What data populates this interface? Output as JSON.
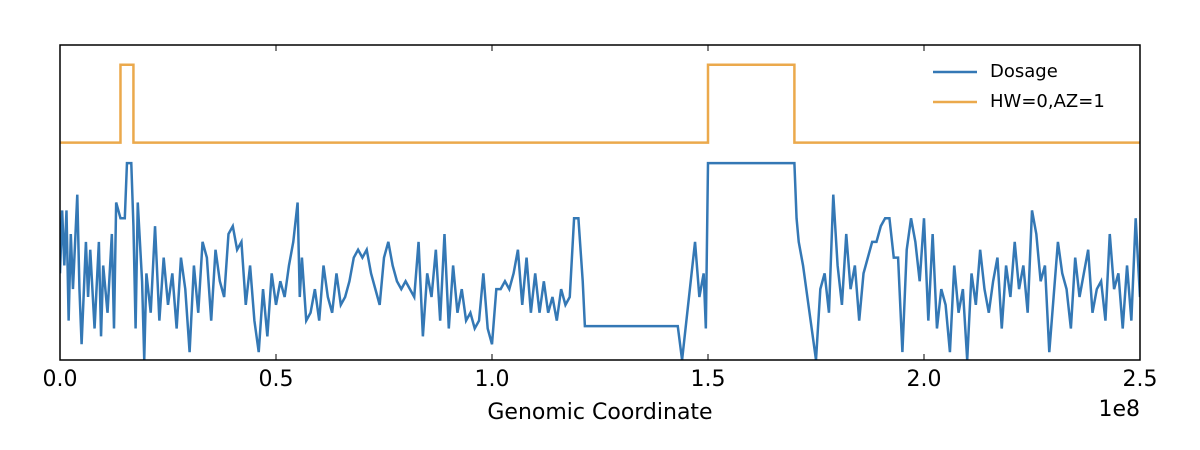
{
  "chart_data": {
    "type": "line",
    "x_label": "Genomic Coordinate",
    "x_offset_label": "1e8",
    "xlim": [
      0,
      250000000.0
    ],
    "xticks": [
      {
        "value": 0,
        "label": "0.0"
      },
      {
        "value": 50000000.0,
        "label": "0.5"
      },
      {
        "value": 100000000.0,
        "label": "1.0"
      },
      {
        "value": 150000000.0,
        "label": "1.5"
      },
      {
        "value": 200000000.0,
        "label": "2.0"
      },
      {
        "value": 250000000.0,
        "label": "2.5"
      }
    ],
    "ylim": [
      0,
      4
    ],
    "legend": "upper right",
    "series": [
      {
        "name": "Dosage",
        "color": "#3478b5",
        "x": [
          0.0,
          500000.0,
          1000000.0,
          1500000.0,
          2000000.0,
          2500000.0,
          3000000.0,
          4000000.0,
          4500000.0,
          5000000.0,
          6000000.0,
          6500000.0,
          7000000.0,
          8000000.0,
          9000000.0,
          9500000.0,
          10000000.0,
          11000000.0,
          12000000.0,
          12500000.0,
          13000000.0,
          14000000.0,
          15000000.0,
          15500000.0,
          16500000.0,
          17000000.0,
          17500000.0,
          18000000.0,
          19000000.0,
          19500000.0,
          20000000.0,
          21000000.0,
          22000000.0,
          23000000.0,
          24000000.0,
          25000000.0,
          26000000.0,
          27000000.0,
          28000000.0,
          29000000.0,
          30000000.0,
          31000000.0,
          32000000.0,
          33000000.0,
          34000000.0,
          35000000.0,
          36000000.0,
          37000000.0,
          38000000.0,
          39000000.0,
          40000000.0,
          41000000.0,
          42000000.0,
          43000000.0,
          44000000.0,
          45000000.0,
          46000000.0,
          47000000.0,
          48000000.0,
          49000000.0,
          50000000.0,
          51000000.0,
          52000000.0,
          53000000.0,
          54000000.0,
          55000000.0,
          55500000.0,
          56000000.0,
          57000000.0,
          58000000.0,
          59000000.0,
          60000000.0,
          61000000.0,
          62000000.0,
          63000000.0,
          64000000.0,
          65000000.0,
          66000000.0,
          67000000.0,
          68000000.0,
          69000000.0,
          70000000.0,
          71000000.0,
          72000000.0,
          73000000.0,
          74000000.0,
          75000000.0,
          76000000.0,
          77000000.0,
          78000000.0,
          79000000.0,
          80000000.0,
          81000000.0,
          82000000.0,
          83000000.0,
          84000000.0,
          85000000.0,
          86000000.0,
          87000000.0,
          88000000.0,
          89000000.0,
          90000000.0,
          91000000.0,
          92000000.0,
          93000000.0,
          94000000.0,
          95000000.0,
          96000000.0,
          97000000.0,
          98000000.0,
          99000000.0,
          100000000.0,
          101000000.0,
          102000000.0,
          103000000.0,
          104000000.0,
          105000000.0,
          106000000.0,
          107000000.0,
          108000000.0,
          109000000.0,
          110000000.0,
          111000000.0,
          112000000.0,
          113000000.0,
          114000000.0,
          115000000.0,
          116000000.0,
          117000000.0,
          118000000.0,
          119000000.0,
          120000000.0,
          121000000.0,
          121500000.0,
          143000000.0,
          144000000.0,
          145000000.0,
          146000000.0,
          147000000.0,
          148000000.0,
          149000000.0,
          149500000.0,
          150000000.0,
          170000000.0,
          170500000.0,
          171000000.0,
          172000000.0,
          173000000.0,
          174000000.0,
          175000000.0,
          176000000.0,
          177000000.0,
          178000000.0,
          179000000.0,
          180000000.0,
          181000000.0,
          182000000.0,
          183000000.0,
          184000000.0,
          185000000.0,
          186000000.0,
          187000000.0,
          188000000.0,
          189000000.0,
          190000000.0,
          191000000.0,
          192000000.0,
          193000000.0,
          194000000.0,
          195000000.0,
          196000000.0,
          197000000.0,
          198000000.0,
          199000000.0,
          200000000.0,
          201000000.0,
          202000000.0,
          203000000.0,
          204000000.0,
          205000000.0,
          206000000.0,
          207000000.0,
          208000000.0,
          209000000.0,
          210000000.0,
          211000000.0,
          212000000.0,
          213000000.0,
          214000000.0,
          215000000.0,
          216000000.0,
          217000000.0,
          218000000.0,
          219000000.0,
          220000000.0,
          221000000.0,
          222000000.0,
          223000000.0,
          224000000.0,
          225000000.0,
          226000000.0,
          227000000.0,
          228000000.0,
          229000000.0,
          230000000.0,
          231000000.0,
          232000000.0,
          233000000.0,
          234000000.0,
          235000000.0,
          236000000.0,
          237000000.0,
          238000000.0,
          239000000.0,
          240000000.0,
          241000000.0,
          242000000.0,
          243000000.0,
          244000000.0,
          245000000.0,
          246000000.0,
          247000000.0,
          248000000.0,
          249000000.0,
          250000000.0
        ],
        "values": [
          1.1,
          1.9,
          1.2,
          1.9,
          0.5,
          1.6,
          0.9,
          2.1,
          0.9,
          0.2,
          1.5,
          0.8,
          1.4,
          0.4,
          1.5,
          0.3,
          1.2,
          0.6,
          1.6,
          0.4,
          2.0,
          1.8,
          1.8,
          2.5,
          2.5,
          1.7,
          0.4,
          2.0,
          1.0,
          0.0,
          1.1,
          0.6,
          1.7,
          0.5,
          1.3,
          0.7,
          1.1,
          0.4,
          1.3,
          0.9,
          0.1,
          1.2,
          0.6,
          1.5,
          1.3,
          0.5,
          1.4,
          1.0,
          0.8,
          1.6,
          1.7,
          1.4,
          1.5,
          0.7,
          1.2,
          0.5,
          0.1,
          0.9,
          0.3,
          1.1,
          0.7,
          1.0,
          0.8,
          1.2,
          1.5,
          2.0,
          0.8,
          1.3,
          0.5,
          0.6,
          0.9,
          0.5,
          1.2,
          0.8,
          0.6,
          1.1,
          0.7,
          0.8,
          1.0,
          1.3,
          1.4,
          1.3,
          1.4,
          1.1,
          0.9,
          0.7,
          1.3,
          1.5,
          1.2,
          1.0,
          0.9,
          1.0,
          0.9,
          0.8,
          1.5,
          0.3,
          1.1,
          0.8,
          1.4,
          0.5,
          1.6,
          0.4,
          1.2,
          0.6,
          0.9,
          0.5,
          0.6,
          0.4,
          0.5,
          1.1,
          0.4,
          0.2,
          0.9,
          0.9,
          1.0,
          0.9,
          1.1,
          1.4,
          0.7,
          1.3,
          0.6,
          1.1,
          0.6,
          1.0,
          0.6,
          0.8,
          0.5,
          0.9,
          0.7,
          0.8,
          1.8,
          1.8,
          1.0,
          0.43,
          0.43,
          0.0,
          0.5,
          1.0,
          1.5,
          0.8,
          1.1,
          0.4,
          2.5,
          2.5,
          1.8,
          1.5,
          1.2,
          0.8,
          0.4,
          0.0,
          0.9,
          1.1,
          0.6,
          2.1,
          1.2,
          0.7,
          1.6,
          0.9,
          1.2,
          0.5,
          1.1,
          1.3,
          1.5,
          1.5,
          1.7,
          1.8,
          1.8,
          1.3,
          1.3,
          0.1,
          1.4,
          1.8,
          1.5,
          1.0,
          1.8,
          0.5,
          1.6,
          0.4,
          0.9,
          0.7,
          0.1,
          1.2,
          0.6,
          0.9,
          0.0,
          1.1,
          0.7,
          1.4,
          0.9,
          0.6,
          1.0,
          1.3,
          0.4,
          1.2,
          0.8,
          1.5,
          0.9,
          1.2,
          0.6,
          1.9,
          1.6,
          1.0,
          1.2,
          0.1,
          0.8,
          1.5,
          1.1,
          0.9,
          0.4,
          1.3,
          0.8,
          1.1,
          1.4,
          0.6,
          0.9,
          1.0,
          0.5,
          1.6,
          0.9,
          1.1,
          0.4,
          1.2,
          0.5,
          1.8,
          0.8
        ]
      },
      {
        "name": "HW=0,AZ=1",
        "color": "#eba94c",
        "x": [
          0,
          14000000.0,
          14000000.0,
          17000000.0,
          17000000.0,
          147000000.0,
          150000000.0,
          150000000.0,
          170000000.0,
          170000000.0,
          250000000.0
        ],
        "values": [
          2.76,
          2.76,
          3.75,
          3.75,
          2.76,
          2.76,
          2.76,
          3.75,
          3.75,
          2.76,
          2.76
        ]
      }
    ]
  }
}
